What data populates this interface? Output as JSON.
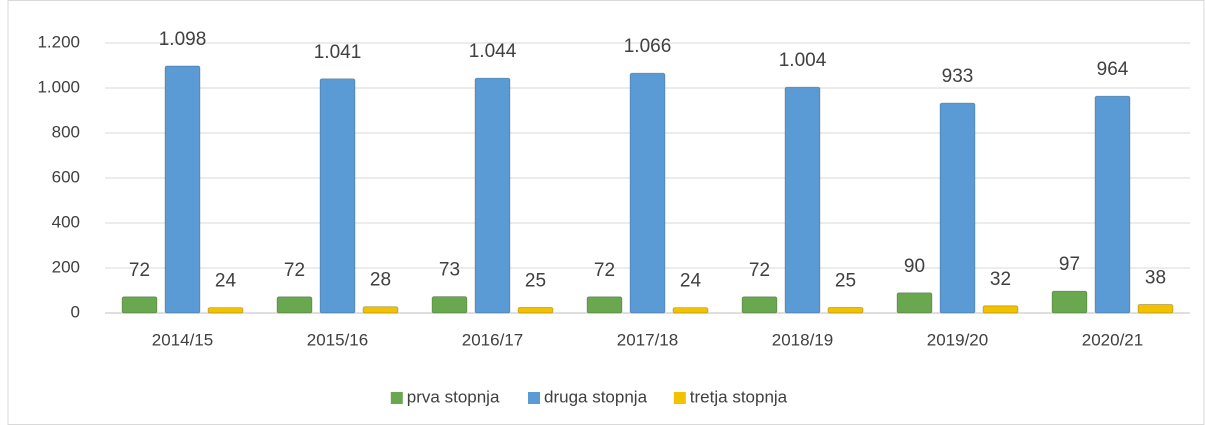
{
  "chart_data": {
    "type": "bar",
    "categories": [
      "2014/15",
      "2015/16",
      "2016/17",
      "2017/18",
      "2018/19",
      "2019/20",
      "2020/21"
    ],
    "series": [
      {
        "name": "prva stopnja",
        "color": "#6aa84f",
        "values": [
          72,
          72,
          73,
          72,
          72,
          90,
          97
        ]
      },
      {
        "name": "druga stopnja",
        "color": "#5b9bd5",
        "values": [
          1098,
          1041,
          1044,
          1066,
          1004,
          933,
          964
        ],
        "value_labels": [
          "1.098",
          "1.041",
          "1.044",
          "1.066",
          "1.004",
          "933",
          "964"
        ]
      },
      {
        "name": "tretja stopnja",
        "color": "#f2c200",
        "values": [
          24,
          28,
          25,
          24,
          25,
          32,
          38
        ]
      }
    ],
    "ylim": [
      0,
      1200
    ],
    "yticks": [
      0,
      200,
      400,
      600,
      800,
      {
        "value": 1000,
        "label": "1.000"
      },
      {
        "value": 1200,
        "label": "1.200"
      }
    ],
    "grid": true,
    "legend": "bottom"
  }
}
